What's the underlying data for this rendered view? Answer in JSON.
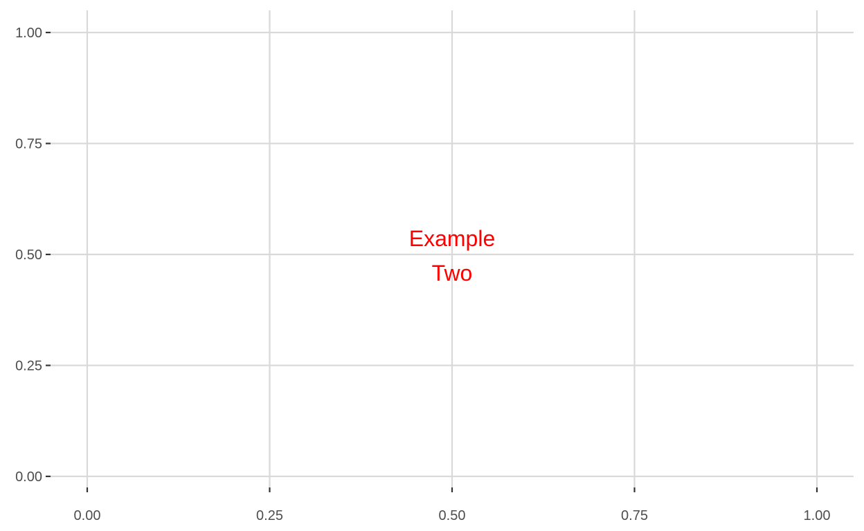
{
  "chart_data": {
    "type": "scatter",
    "title": "",
    "xlabel": "",
    "ylabel": "",
    "xlim": [
      0,
      1
    ],
    "ylim": [
      0,
      1
    ],
    "x_ticks": [
      "0.00",
      "0.25",
      "0.50",
      "0.75",
      "1.00"
    ],
    "y_ticks": [
      "0.00",
      "0.25",
      "0.50",
      "0.75",
      "1.00"
    ],
    "grid": true,
    "legend": "none",
    "series": [],
    "annotations": [
      {
        "x": 0.5,
        "y": 0.5,
        "lines": [
          "Example",
          "Two"
        ],
        "color": "#ff0000"
      }
    ],
    "colors": {
      "background": "#ffffff",
      "grid": "#d9d9d9",
      "tick_text": "#4d4d4d",
      "annotation": "#ff0000"
    }
  }
}
